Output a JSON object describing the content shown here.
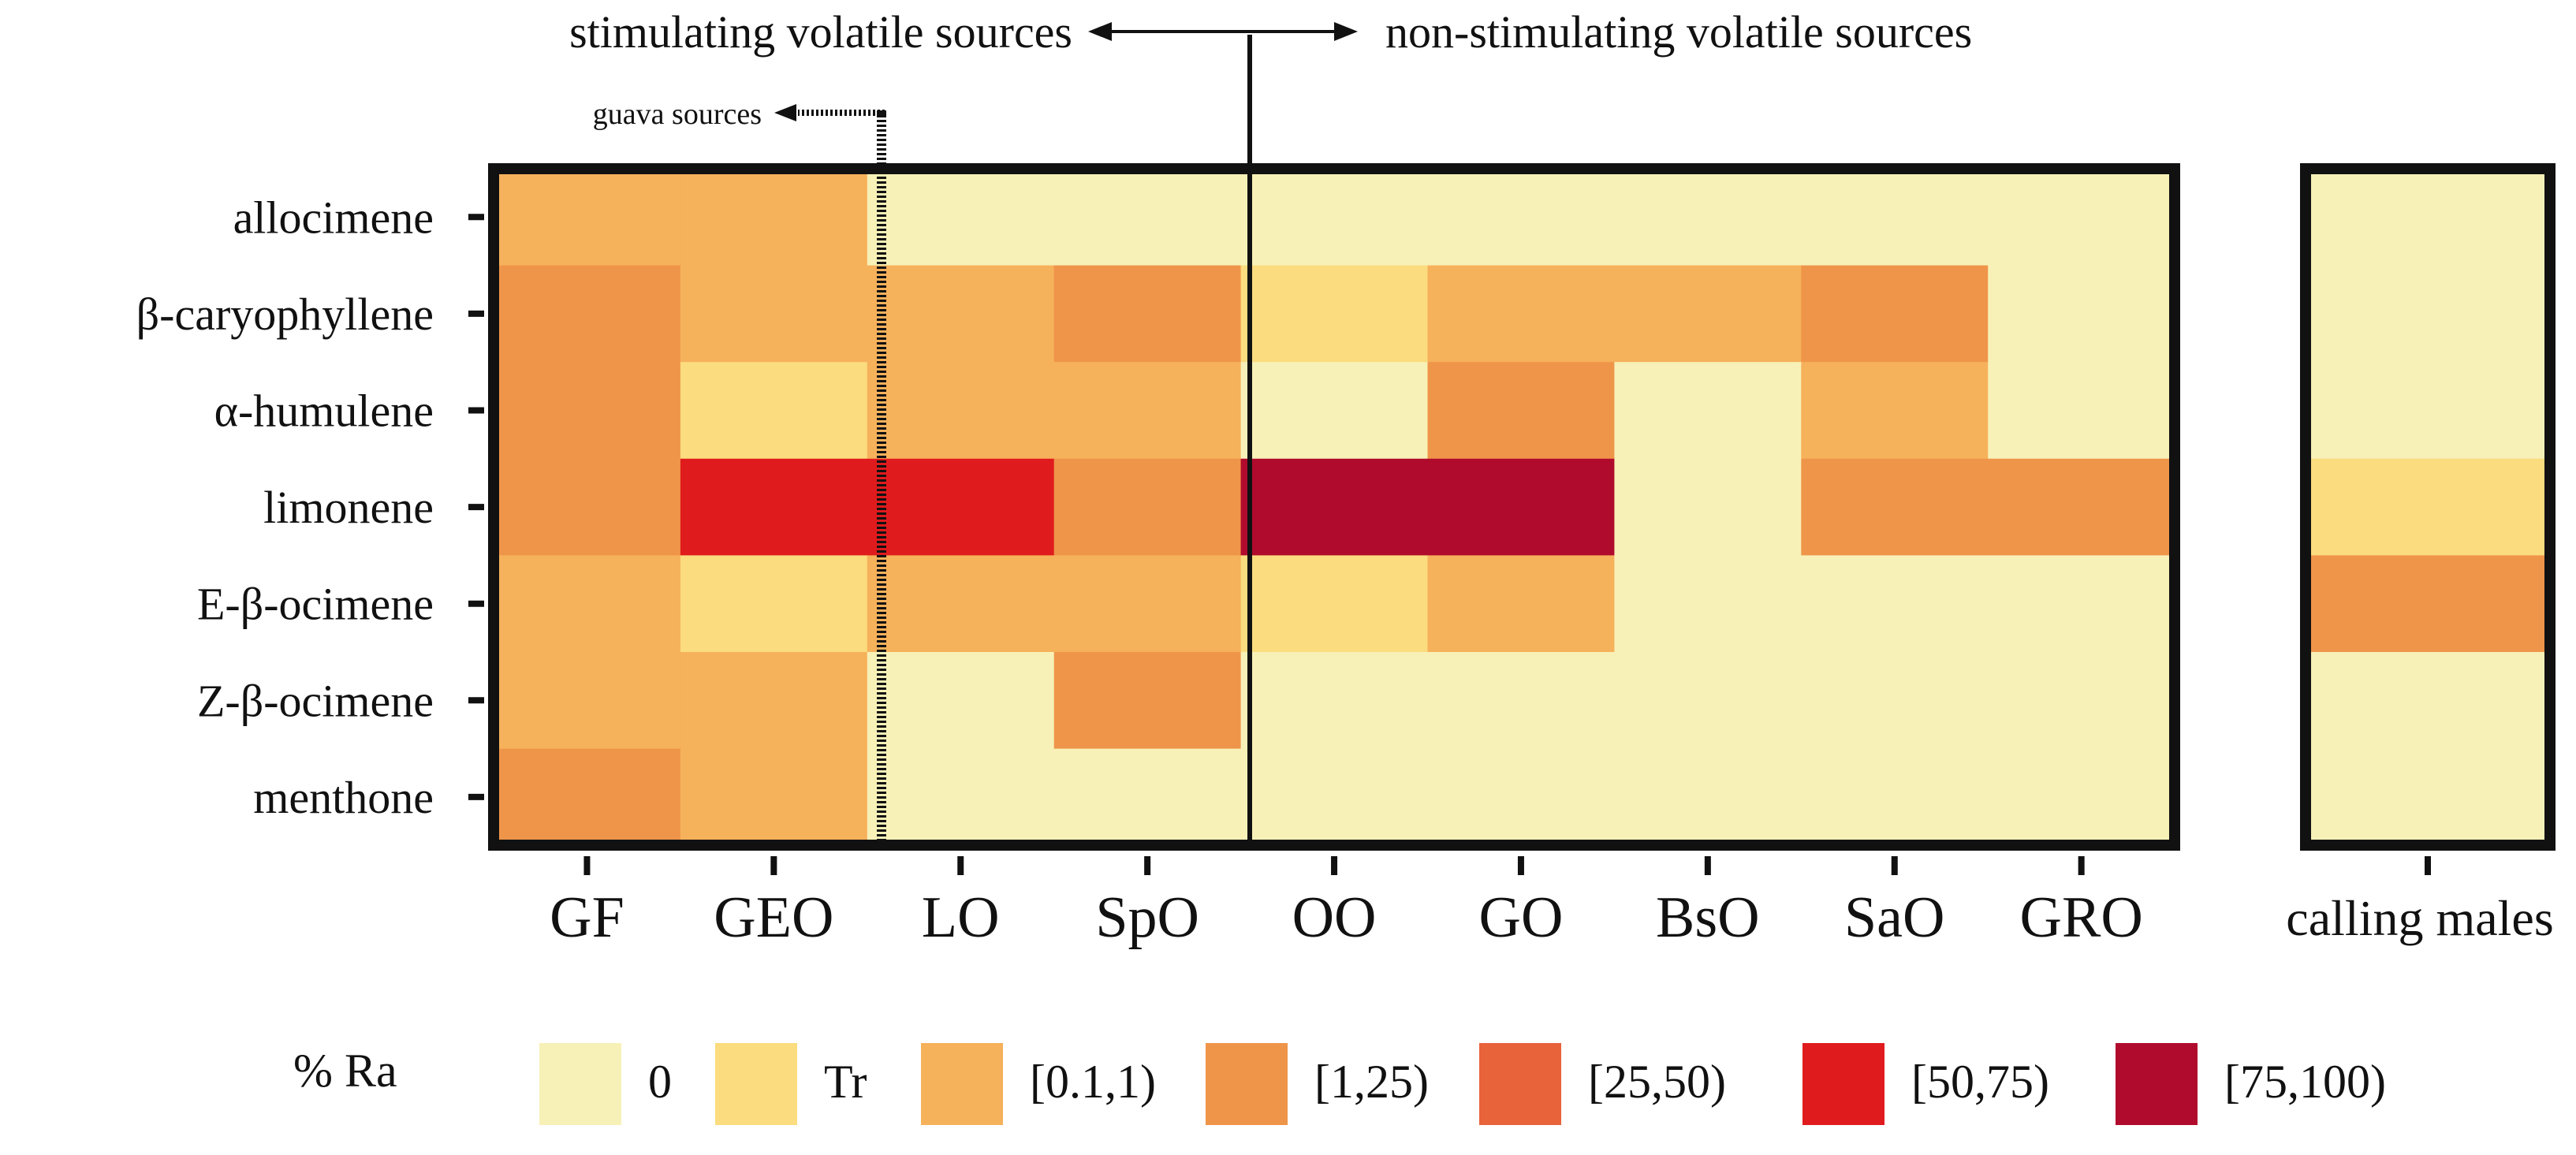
{
  "chart_data": {
    "type": "heatmap",
    "annotations": {
      "left_group": "stimulating volatile sources",
      "right_group": "non-stimulating volatile sources",
      "guava": "guava sources"
    },
    "rows": [
      "allocimene",
      "β-caryophyllene",
      "α-humulene",
      "limonene",
      "E-β-ocimene",
      "Z-β-ocimene",
      "menthone"
    ],
    "columns": [
      "GF",
      "GEO",
      "LO",
      "SpO",
      "OO",
      "GO",
      "BsO",
      "SaO",
      "GRO"
    ],
    "calling_column": "calling males",
    "categories": [
      "0",
      "Tr",
      "[0.1,1)",
      "[1,25)",
      "[25,50)",
      "[50,75)",
      "[75,100)"
    ],
    "colors": [
      "#f7f1b7",
      "#fbdc7e",
      "#f6b15b",
      "#ef954a",
      "#e8623a",
      "#e01b1e",
      "#b00b2d"
    ],
    "values": [
      [
        2,
        2,
        0,
        0,
        0,
        0,
        0,
        0,
        0
      ],
      [
        3,
        2,
        2,
        3,
        1,
        2,
        2,
        3,
        0
      ],
      [
        3,
        1,
        2,
        2,
        0,
        3,
        0,
        2,
        0
      ],
      [
        3,
        5,
        5,
        3,
        6,
        6,
        0,
        3,
        3
      ],
      [
        2,
        1,
        2,
        2,
        1,
        2,
        0,
        0,
        0
      ],
      [
        2,
        2,
        0,
        3,
        0,
        0,
        0,
        0,
        0
      ],
      [
        3,
        2,
        0,
        0,
        0,
        0,
        0,
        0,
        0
      ]
    ],
    "calling_values": [
      0,
      0,
      0,
      1,
      3,
      0,
      0
    ],
    "legend_title": "% Ra"
  }
}
